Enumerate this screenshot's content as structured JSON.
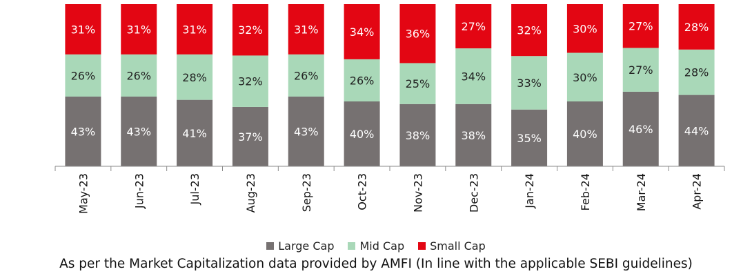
{
  "chart_data": {
    "type": "bar",
    "stacked": true,
    "categories": [
      "May-23",
      "Jun-23",
      "Jul-23",
      "Aug-23",
      "Sep-23",
      "Oct-23",
      "Nov-23",
      "Dec-23",
      "Jan-24",
      "Feb-24",
      "Mar-24",
      "Apr-24"
    ],
    "series": [
      {
        "name": "Large Cap",
        "color": "#767171",
        "values": [
          43,
          43,
          41,
          37,
          43,
          40,
          38,
          38,
          35,
          40,
          46,
          44
        ]
      },
      {
        "name": "Mid Cap",
        "color": "#A9D8B8",
        "values": [
          26,
          26,
          28,
          32,
          26,
          26,
          25,
          34,
          33,
          30,
          27,
          28
        ]
      },
      {
        "name": "Small Cap",
        "color": "#E30613",
        "values": [
          31,
          31,
          31,
          32,
          31,
          34,
          36,
          27,
          32,
          30,
          27,
          28
        ]
      }
    ],
    "value_suffix": "%",
    "legend_position": "bottom"
  },
  "footnote": "As per the Market Capitalization data provided by AMFI (In line with the applicable SEBI guidelines)"
}
